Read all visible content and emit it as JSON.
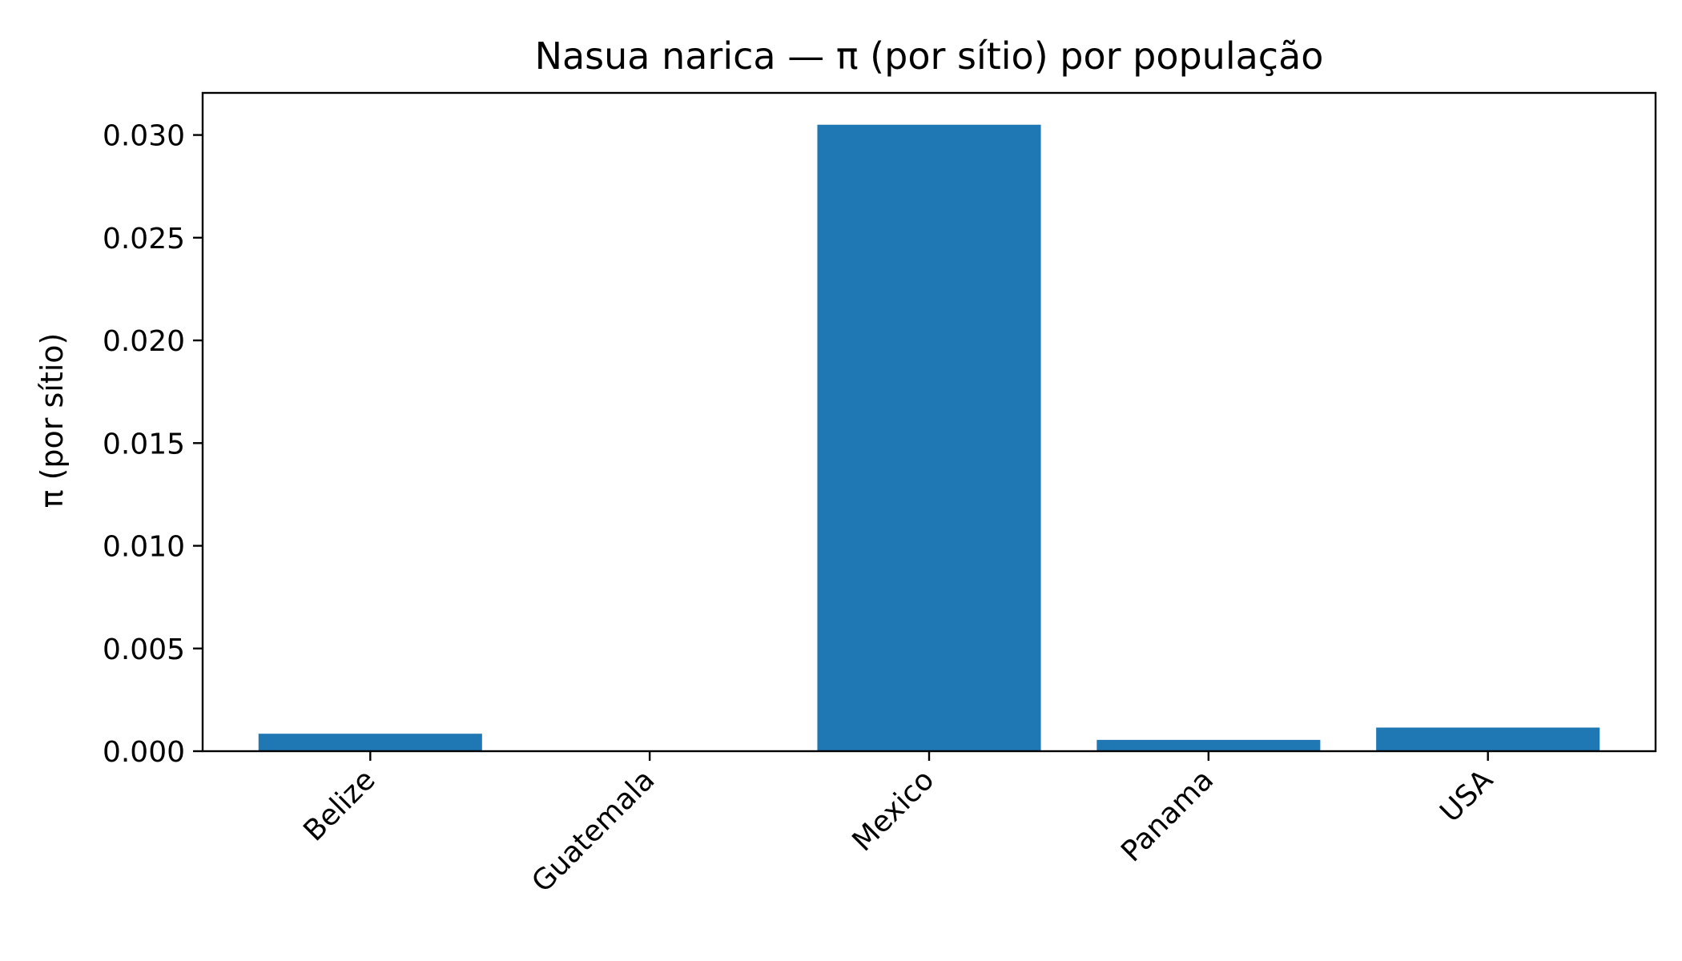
{
  "chart_data": {
    "type": "bar",
    "title": "Nasua narica — π (por sítio) por população",
    "xlabel": "",
    "ylabel": "π (por sítio)",
    "categories": [
      "Belize",
      "Guatemala",
      "Mexico",
      "Panama",
      "USA"
    ],
    "values": [
      0.00085,
      0.0,
      0.0305,
      0.00055,
      0.00115
    ],
    "ylim": [
      0,
      0.03205
    ],
    "yticks": [
      0.0,
      0.005,
      0.01,
      0.015,
      0.02,
      0.025,
      0.03
    ],
    "ytick_labels": [
      "0.000",
      "0.005",
      "0.010",
      "0.015",
      "0.020",
      "0.025",
      "0.030"
    ],
    "bar_color": "#1f77b4",
    "grid": false,
    "legend": "none"
  }
}
